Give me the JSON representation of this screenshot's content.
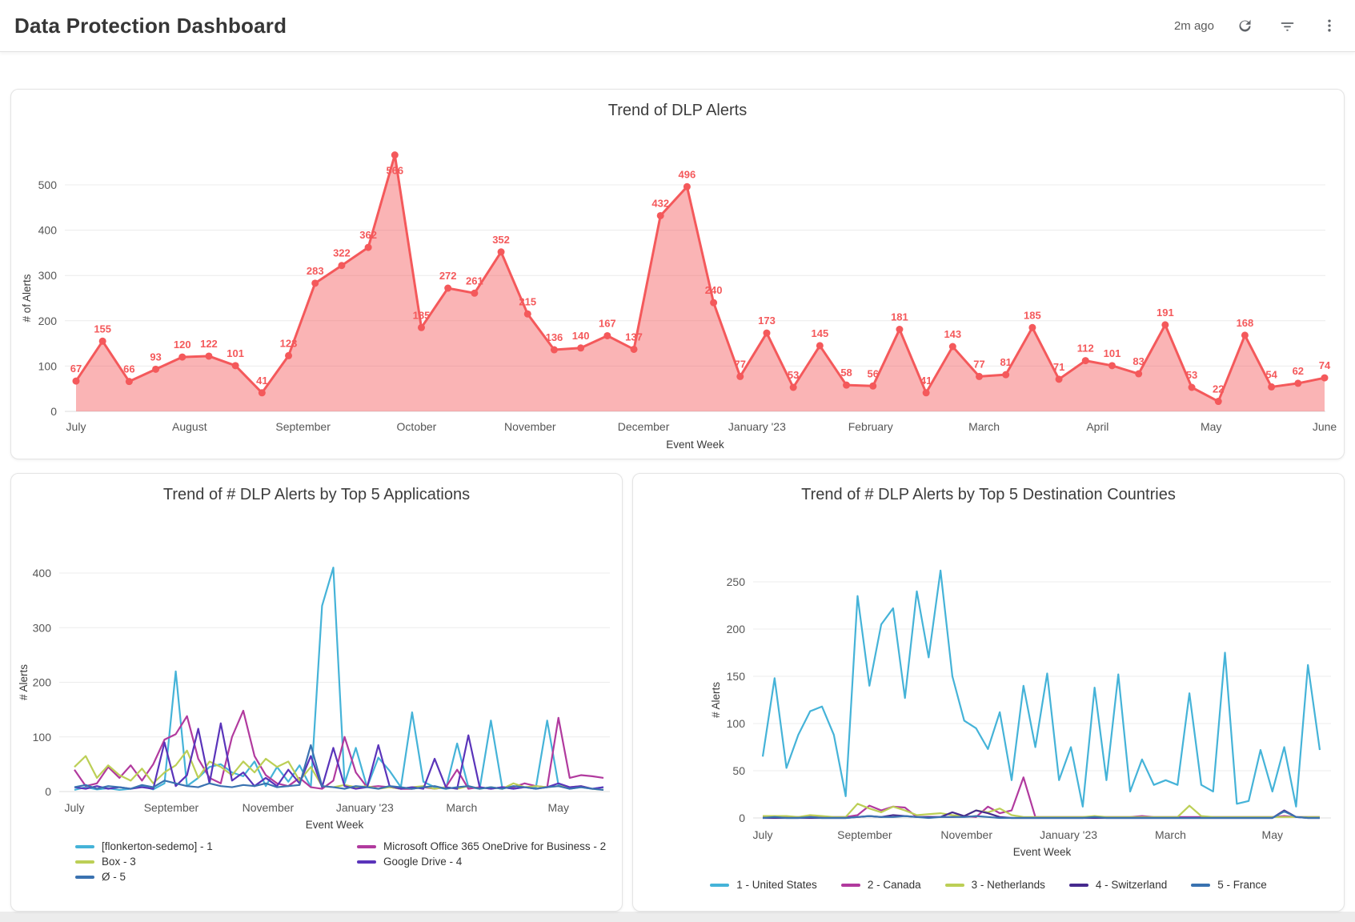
{
  "header": {
    "title": "Data Protection Dashboard",
    "last_refresh": "2m ago"
  },
  "chart_data": [
    {
      "id": "main",
      "type": "area",
      "title": "Trend of DLP Alerts",
      "xlabel": "Event Week",
      "ylabel": "# of Alerts",
      "x_tick_labels": [
        "July",
        "August",
        "September",
        "October",
        "November",
        "December",
        "January '23",
        "February",
        "March",
        "April",
        "May",
        "June"
      ],
      "yticks": [
        0,
        100,
        200,
        300,
        400,
        500
      ],
      "ylim": [
        0,
        580
      ],
      "grid": true,
      "legend_position": "none",
      "line_color": "#f4595b",
      "fill_color": "rgba(244,89,91,0.45)",
      "values": [
        67,
        155,
        66,
        93,
        120,
        122,
        101,
        41,
        123,
        283,
        322,
        362,
        566,
        185,
        272,
        261,
        352,
        215,
        136,
        140,
        167,
        137,
        432,
        496,
        240,
        77,
        173,
        53,
        145,
        58,
        56,
        181,
        41,
        143,
        77,
        81,
        185,
        71,
        112,
        101,
        83,
        191,
        53,
        22,
        168,
        54,
        62,
        74
      ]
    },
    {
      "id": "apps",
      "type": "line",
      "title": "Trend of # DLP Alerts by Top 5 Applications",
      "xlabel": "Event Week",
      "ylabel": "# Alerts",
      "x_tick_labels": [
        "July",
        "September",
        "November",
        "January '23",
        "March",
        "May"
      ],
      "yticks": [
        0,
        100,
        200,
        300,
        400
      ],
      "ylim": [
        0,
        440
      ],
      "grid": true,
      "legend_position": "bottom-two-columns",
      "series": [
        {
          "name": "[flonkerton-sedemo] - 1",
          "color": "#45b3d8",
          "values": [
            3,
            8,
            4,
            6,
            3,
            5,
            10,
            4,
            15,
            220,
            10,
            25,
            45,
            50,
            35,
            28,
            55,
            10,
            45,
            18,
            48,
            8,
            340,
            410,
            15,
            80,
            8,
            62,
            38,
            8,
            145,
            18,
            8,
            5,
            88,
            8,
            5,
            130,
            8,
            5,
            8,
            8,
            130,
            12,
            5,
            8,
            5,
            8
          ]
        },
        {
          "name": "Microsoft Office 365 OneDrive for Business - 2",
          "color": "#b13a9e",
          "values": [
            40,
            10,
            15,
            45,
            25,
            48,
            20,
            50,
            95,
            105,
            138,
            60,
            25,
            15,
            100,
            148,
            65,
            30,
            15,
            10,
            25,
            8,
            5,
            20,
            100,
            35,
            8,
            10,
            8,
            5,
            5,
            8,
            5,
            8,
            40,
            5,
            8,
            5,
            8,
            8,
            15,
            10,
            8,
            135,
            25,
            30,
            28,
            25
          ]
        },
        {
          "name": "Box - 3",
          "color": "#bccf56",
          "values": [
            45,
            65,
            25,
            48,
            30,
            20,
            42,
            15,
            35,
            48,
            75,
            25,
            55,
            45,
            30,
            55,
            35,
            60,
            45,
            55,
            20,
            45,
            10,
            8,
            12,
            8,
            10,
            5,
            8,
            5,
            8,
            10,
            5,
            8,
            5,
            10,
            5,
            8,
            5,
            15,
            8,
            10,
            8,
            10,
            8,
            10,
            5,
            3
          ]
        },
        {
          "name": "Google Drive - 4",
          "color": "#5a34ba",
          "values": [
            8,
            5,
            10,
            5,
            8,
            5,
            8,
            5,
            90,
            10,
            30,
            115,
            15,
            125,
            20,
            35,
            10,
            25,
            10,
            40,
            15,
            65,
            8,
            80,
            10,
            5,
            8,
            85,
            10,
            5,
            8,
            5,
            60,
            8,
            5,
            103,
            8,
            5,
            8,
            5,
            8,
            5,
            8,
            15,
            8,
            10,
            5,
            8
          ]
        },
        {
          "name": "Ø - 5",
          "color": "#3a72b0",
          "values": [
            8,
            12,
            5,
            10,
            8,
            5,
            12,
            8,
            20,
            15,
            10,
            8,
            15,
            10,
            8,
            12,
            10,
            15,
            8,
            10,
            12,
            85,
            10,
            8,
            5,
            10,
            8,
            5,
            10,
            8,
            5,
            8,
            10,
            5,
            8,
            10,
            5,
            8,
            5,
            10,
            8,
            5,
            8,
            10,
            5,
            8,
            5,
            3
          ]
        }
      ]
    },
    {
      "id": "countries",
      "type": "line",
      "title": "Trend of # DLP Alerts by Top 5 Destination Countries",
      "xlabel": "Event Week",
      "ylabel": "# Alerts",
      "x_tick_labels": [
        "July",
        "September",
        "November",
        "January '23",
        "March",
        "May"
      ],
      "yticks": [
        0,
        50,
        100,
        150,
        200,
        250
      ],
      "ylim": [
        0,
        275
      ],
      "grid": true,
      "legend_position": "bottom-single-row",
      "series": [
        {
          "name": "1 - United States",
          "color": "#45b3d8",
          "values": [
            65,
            148,
            53,
            88,
            113,
            118,
            88,
            23,
            235,
            140,
            205,
            222,
            127,
            240,
            170,
            262,
            150,
            103,
            95,
            73,
            112,
            40,
            140,
            75,
            153,
            40,
            75,
            12,
            138,
            40,
            152,
            28,
            62,
            35,
            40,
            35,
            132,
            35,
            28,
            175,
            15,
            18,
            72,
            28,
            75,
            12,
            162,
            72
          ]
        },
        {
          "name": "2 - Canada",
          "color": "#b13a9e",
          "values": [
            1,
            1,
            1,
            1,
            2,
            1,
            1,
            1,
            3,
            13,
            8,
            12,
            11,
            1,
            1,
            1,
            1,
            2,
            1,
            12,
            5,
            8,
            43,
            1,
            1,
            1,
            1,
            1,
            1,
            1,
            1,
            1,
            2,
            1,
            1,
            1,
            1,
            1,
            1,
            1,
            1,
            1,
            1,
            1,
            2,
            1,
            1,
            1
          ]
        },
        {
          "name": "3 - Netherlands",
          "color": "#bccf56",
          "values": [
            2,
            2,
            2,
            1,
            3,
            2,
            1,
            1,
            15,
            10,
            6,
            12,
            8,
            3,
            4,
            5,
            3,
            2,
            8,
            6,
            10,
            3,
            1,
            1,
            1,
            1,
            1,
            1,
            2,
            1,
            1,
            1,
            1,
            1,
            1,
            1,
            13,
            2,
            1,
            1,
            1,
            1,
            1,
            1,
            1,
            1,
            1,
            1
          ]
        },
        {
          "name": "4 - Switzerland",
          "color": "#462a8e",
          "values": [
            0,
            0,
            0,
            0,
            0,
            0,
            0,
            0,
            1,
            2,
            1,
            3,
            2,
            1,
            1,
            1,
            6,
            2,
            8,
            5,
            1,
            0,
            0,
            0,
            0,
            0,
            0,
            0,
            0,
            0,
            0,
            0,
            0,
            0,
            0,
            0,
            0,
            0,
            0,
            0,
            0,
            0,
            0,
            0,
            8,
            1,
            0,
            0
          ]
        },
        {
          "name": "5 - France",
          "color": "#3a72b0",
          "values": [
            0,
            1,
            0,
            0,
            1,
            0,
            0,
            0,
            1,
            2,
            1,
            1,
            2,
            1,
            0,
            1,
            1,
            1,
            2,
            1,
            0,
            0,
            0,
            0,
            0,
            0,
            0,
            0,
            1,
            0,
            0,
            0,
            0,
            0,
            0,
            0,
            0,
            0,
            0,
            0,
            0,
            0,
            0,
            0,
            7,
            1,
            0,
            0
          ]
        }
      ]
    }
  ]
}
